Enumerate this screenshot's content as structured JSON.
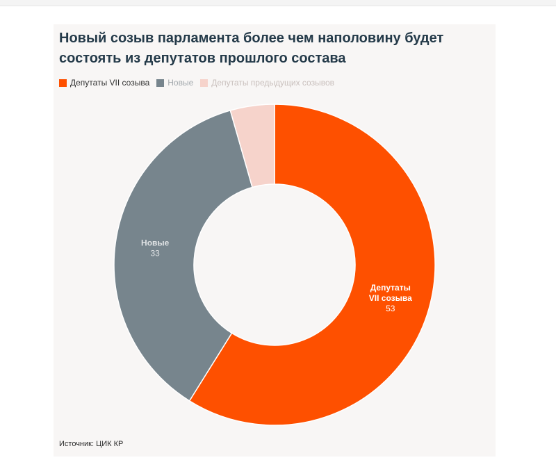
{
  "chart_data": {
    "type": "pie",
    "title": "Новый созыв парламента более чем наполовину будет состоять из депутатов прошлого состава",
    "categories": [
      "Депутаты VII созыва",
      "Новые",
      "Депутаты предыдущих созывов"
    ],
    "values": [
      53,
      33,
      4
    ],
    "colors": [
      "#fe5000",
      "#77858d",
      "#f6d3cb"
    ],
    "legend_text_colors": [
      "#333333",
      "#a3a9ad",
      "#c9c0bd"
    ],
    "slice_labels": [
      {
        "lines": [
          "Депутаты",
          "VII созыва"
        ],
        "value": "53",
        "color": "#ffffff"
      },
      {
        "lines": [
          "Новые"
        ],
        "value": "33",
        "color": "#dfe2e4"
      },
      null
    ],
    "donut": true,
    "legend_position": "top-left"
  },
  "source": "Источник: ЦИК КР"
}
